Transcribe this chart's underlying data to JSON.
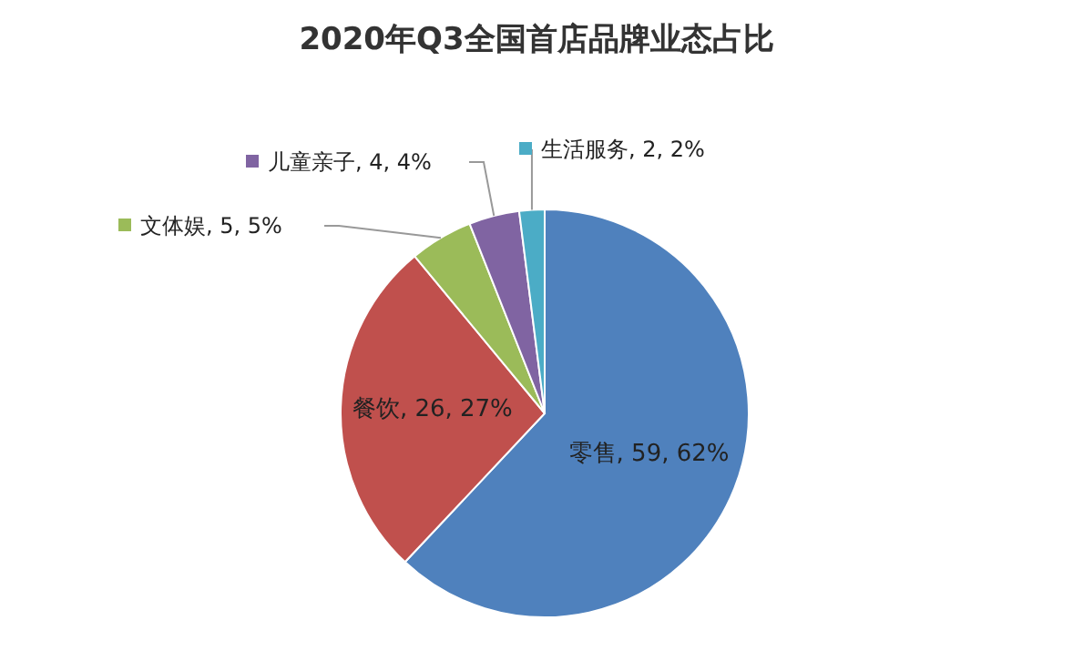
{
  "chart_data": {
    "type": "pie",
    "title": "2020年Q3全国首店品牌业态占比",
    "categories": [
      "零售",
      "餐饮",
      "文体娱",
      "儿童亲子",
      "生活服务"
    ],
    "values": [
      62,
      27,
      5,
      4,
      2
    ],
    "value_labels": [
      "59, 62%",
      "26, 27%",
      "5, 5%",
      "4, 4%",
      "2, 2%"
    ],
    "colors": [
      "#4f81bd",
      "#c0504d",
      "#9bbb59",
      "#8064a2",
      "#4bacc6"
    ],
    "legend": "top left"
  }
}
